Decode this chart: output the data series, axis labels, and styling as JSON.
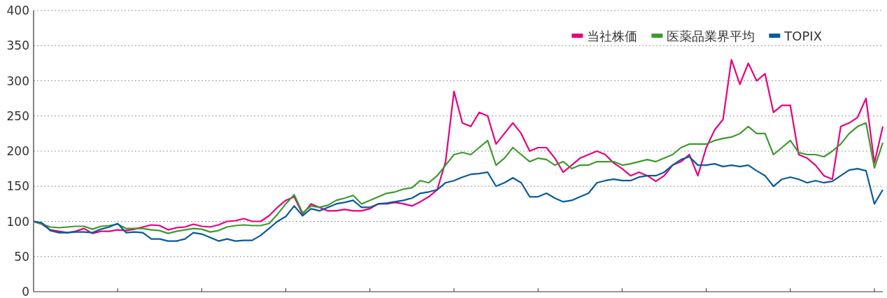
{
  "chart_data": {
    "type": "line",
    "categories": [
      null,
      null,
      null,
      null,
      null,
      null,
      null,
      null,
      null,
      null,
      null,
      null,
      null,
      null,
      null,
      null,
      null,
      null,
      null,
      null,
      null,
      null,
      null,
      null,
      null,
      null,
      null,
      null,
      null,
      null,
      null,
      null,
      null,
      null,
      null,
      null,
      null,
      null,
      null,
      null,
      null,
      null,
      null,
      null,
      null,
      null,
      null,
      null,
      null,
      null,
      null,
      null,
      null,
      null,
      null,
      null,
      null,
      null,
      null,
      null,
      null,
      null,
      null,
      null,
      null,
      null,
      null,
      null,
      null,
      null,
      null,
      null,
      null,
      null,
      null,
      null,
      null,
      null,
      null,
      null,
      null,
      null,
      null,
      null,
      null,
      null,
      null,
      null,
      null,
      null,
      null,
      null,
      null,
      null,
      null,
      null,
      null,
      null,
      null,
      null,
      null,
      null
    ],
    "series": [
      {
        "name": "当社株価",
        "color": "#e5007f",
        "values": [
          100,
          96,
          88,
          86,
          84,
          86,
          90,
          83,
          86,
          86,
          88,
          87,
          89,
          92,
          95,
          94,
          88,
          91,
          92,
          96,
          93,
          92,
          95,
          100,
          101,
          104,
          100,
          100,
          108,
          120,
          130,
          135,
          110,
          125,
          120,
          115,
          115,
          117,
          115,
          115,
          118,
          125,
          125,
          127,
          125,
          122,
          128,
          135,
          145,
          185,
          285,
          240,
          235,
          255,
          250,
          210,
          225,
          240,
          225,
          200,
          205,
          205,
          190,
          170,
          180,
          190,
          195,
          200,
          195,
          183,
          175,
          165,
          170,
          165,
          157,
          165,
          180,
          185,
          195,
          165,
          205,
          230,
          245,
          330,
          295,
          325,
          300,
          310,
          255,
          265,
          265,
          195,
          190,
          180,
          165,
          160,
          235,
          240,
          248,
          275,
          183,
          235
        ]
      },
      {
        "name": "医薬品業界平均",
        "color": "#3e9a2e",
        "values": [
          100,
          96,
          92,
          91,
          92,
          93,
          93,
          89,
          93,
          94,
          96,
          90,
          90,
          90,
          88,
          87,
          83,
          86,
          88,
          90,
          89,
          85,
          87,
          92,
          94,
          95,
          94,
          94,
          97,
          110,
          125,
          138,
          112,
          122,
          120,
          123,
          130,
          133,
          137,
          125,
          130,
          135,
          140,
          142,
          146,
          148,
          158,
          155,
          165,
          180,
          195,
          198,
          195,
          205,
          215,
          180,
          190,
          205,
          195,
          185,
          190,
          188,
          180,
          185,
          175,
          180,
          180,
          185,
          185,
          185,
          180,
          182,
          185,
          188,
          185,
          190,
          195,
          205,
          210,
          210,
          210,
          215,
          218,
          220,
          225,
          235,
          225,
          225,
          195,
          205,
          215,
          198,
          195,
          195,
          192,
          200,
          210,
          225,
          235,
          240,
          176,
          212
        ]
      },
      {
        "name": "TOPIX",
        "color": "#0a5a9c",
        "values": [
          100,
          98,
          87,
          84,
          84,
          85,
          85,
          84,
          89,
          92,
          97,
          84,
          85,
          84,
          75,
          75,
          72,
          72,
          75,
          84,
          82,
          77,
          72,
          75,
          72,
          73,
          73,
          80,
          90,
          100,
          107,
          122,
          108,
          118,
          115,
          120,
          125,
          127,
          130,
          120,
          120,
          125,
          126,
          128,
          130,
          133,
          140,
          142,
          145,
          155,
          158,
          163,
          167,
          168,
          170,
          150,
          155,
          162,
          155,
          135,
          135,
          140,
          133,
          128,
          130,
          135,
          140,
          155,
          158,
          160,
          158,
          158,
          163,
          165,
          165,
          170,
          180,
          188,
          192,
          180,
          180,
          182,
          178,
          180,
          178,
          180,
          172,
          165,
          150,
          160,
          163,
          160,
          155,
          158,
          155,
          157,
          165,
          173,
          175,
          172,
          125,
          145
        ]
      }
    ],
    "ylim": [
      0,
      400
    ],
    "yticks": [
      0,
      50,
      100,
      150,
      200,
      250,
      300,
      350,
      400
    ],
    "grid": "y",
    "legend": "top right",
    "line_style": "solid",
    "marker": "none"
  }
}
